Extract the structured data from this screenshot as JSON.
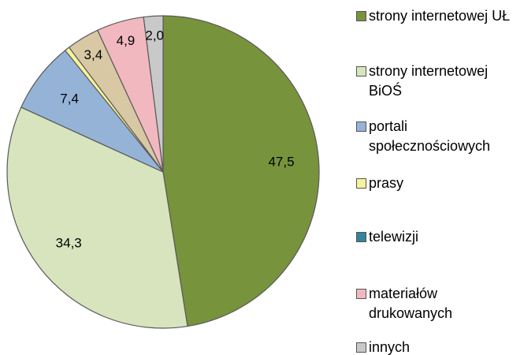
{
  "chart_data": {
    "type": "pie",
    "categories": [
      "strony internetowej UŁ",
      "strony internetowej BiOŚ",
      "portali społecznościowych",
      "prasy",
      "telewizji",
      "materiałów drukowanych",
      "innych"
    ],
    "values": [
      47.5,
      34.3,
      7.4,
      0.5,
      3.4,
      4.9,
      2.0
    ],
    "value_labels": [
      "47,5",
      "34,3",
      "7,4",
      null,
      "3,4",
      "4,9",
      "2,0"
    ],
    "colors": [
      "#77933c",
      "#d7e4bd",
      "#95b3d7",
      "#f7f39a",
      "#d8c8a4",
      "#f2b8c0",
      "#c9c9c9"
    ],
    "legend_colors": [
      "#77933c",
      "#d7e4bd",
      "#95b3d7",
      "#f7f39a",
      "#31859c",
      "#f2b8c0",
      "#c9c9c9"
    ]
  }
}
